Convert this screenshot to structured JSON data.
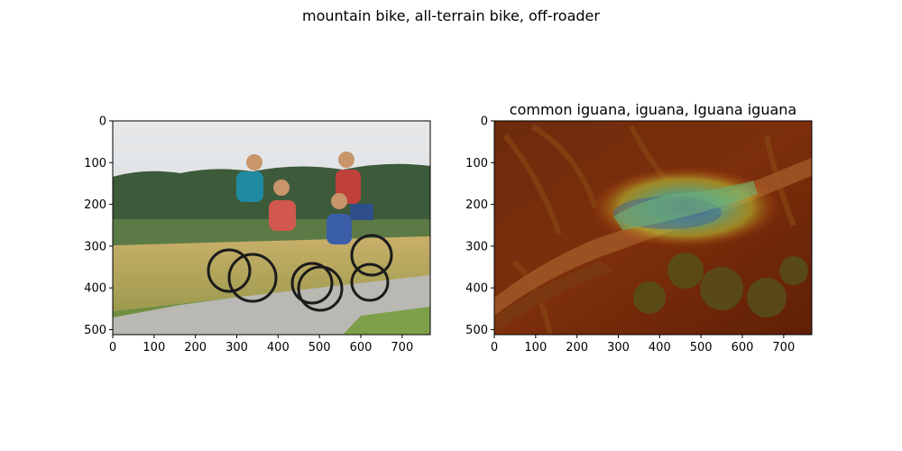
{
  "suptitle": "mountain bike, all-terrain bike, off-roader",
  "chart_data": [
    {
      "type": "image",
      "title": "",
      "content": "photo of a family riding bicycles on a path",
      "xlim": [
        0,
        768
      ],
      "ylim": [
        512,
        0
      ],
      "xticks": [
        0,
        100,
        200,
        300,
        400,
        500,
        600,
        700
      ],
      "yticks": [
        0,
        100,
        200,
        300,
        400,
        500
      ]
    },
    {
      "type": "image",
      "title": "common iguana, iguana, Iguana iguana",
      "content": "saliency heatmap over photo of an iguana on a branch",
      "xlim": [
        0,
        768
      ],
      "ylim": [
        512,
        0
      ],
      "xticks": [
        0,
        100,
        200,
        300,
        400,
        500,
        600,
        700
      ],
      "yticks": [
        0,
        100,
        200,
        300,
        400,
        500
      ]
    }
  ]
}
